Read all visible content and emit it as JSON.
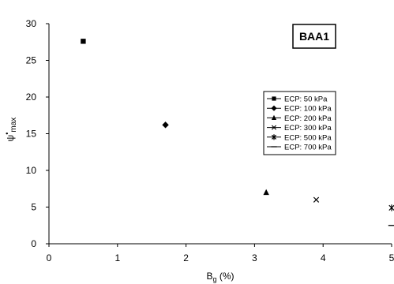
{
  "chart_data": {
    "type": "scatter",
    "title": "BAA1",
    "xlabel": "B",
    "xlabel_sub": "g",
    "xlabel_suffix": " (%)",
    "ylabel": "ψ",
    "ylabel_sup": "•",
    "ylabel_sub": "max",
    "xlim": [
      0,
      5
    ],
    "ylim": [
      0,
      30
    ],
    "xticks": [
      0,
      1,
      2,
      3,
      4,
      5
    ],
    "yticks": [
      0,
      5,
      10,
      15,
      20,
      25,
      30
    ],
    "grid": false,
    "legend_position": "center-right",
    "series": [
      {
        "name": "ECP: 50 kPa",
        "marker": "square",
        "x": [
          0.5
        ],
        "y": [
          27.6
        ]
      },
      {
        "name": "ECP: 100 kPa",
        "marker": "diamond",
        "x": [
          1.7
        ],
        "y": [
          16.2
        ]
      },
      {
        "name": "ECP: 200 kPa",
        "marker": "triangle",
        "x": [
          3.17
        ],
        "y": [
          7.0
        ]
      },
      {
        "name": "ECP: 300 kPa",
        "marker": "x",
        "x": [
          3.9
        ],
        "y": [
          6.0
        ]
      },
      {
        "name": "ECP: 500 kPa",
        "marker": "star",
        "x": [
          5.0
        ],
        "y": [
          4.9
        ]
      },
      {
        "name": "ECP: 700 kPa",
        "marker": "dash",
        "x": [
          5.0
        ],
        "y": [
          2.5
        ]
      }
    ]
  }
}
